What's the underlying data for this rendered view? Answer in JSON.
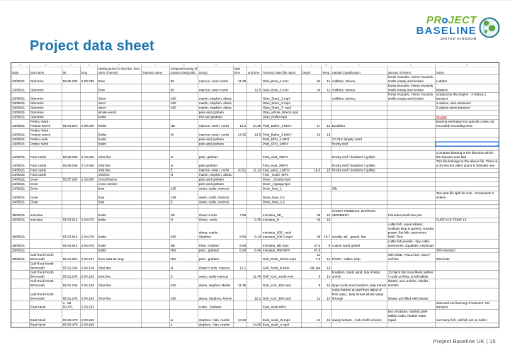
{
  "slide": {
    "title": "Project data sheet",
    "footer": "Project Baseline UK  |  15"
  },
  "logo": {
    "line1_pre": "PR",
    "line1_post": "JECT",
    "line2": "BASELINE",
    "line3": "UNITED KINGDOM"
  },
  "colors": {
    "title_blue": "#1d74ad",
    "logo_green": "#76b42e",
    "logo_blue": "#1e73be",
    "selection_blue": "#2e75d4",
    "red_note": "#c00000"
  },
  "sheet": {
    "col_letters": [
      "A",
      "B",
      "C",
      "D",
      "E",
      "F",
      "G",
      "H",
      "I",
      "J",
      "K",
      "L",
      "M",
      "N",
      "O",
      "P"
    ],
    "columns": [
      "Date",
      "Site name",
      "lat",
      "long",
      "starting point (i.r shot line, bow, stern of wreck)",
      "Transect name",
      "compass bearing of transect being laid",
      "Group",
      "start time",
      "end time",
      "Transect video file name",
      "Depth",
      "Temp",
      "Habitat Classification",
      "species of interst",
      "Notes"
    ],
    "right_aligned_columns": [
      8,
      9,
      11,
      12
    ],
    "selection": {
      "row_index": 10,
      "col_index": 15
    },
    "styled_cells": [
      {
        "row_index": 6,
        "col_index": 15,
        "class": "red"
      }
    ],
    "rows": [
      [
        "23/08/21",
        "Glanmire",
        "55 55.236",
        "2 08.239",
        "Bow",
        "",
        "90",
        "marcus, owen curtis",
        "11.38",
        "",
        "Glan_Bow_1.mov",
        "34",
        "11",
        "cobbles, stones,",
        "horse mussels. Horse mussels shells empty and broken",
        "Lobster"
      ],
      [
        "23/08/21",
        "Glanmire",
        "",
        "",
        "Bow",
        "",
        "60",
        "marcus, owen curtis",
        "",
        "12.5",
        "Glan_Bow_2.mov",
        "34",
        "11",
        "cobbles, stones,",
        "horse mussels. Horse mussels shells empty and broken.",
        "lobsters"
      ],
      [
        "23/08/21",
        "Glanmire",
        "",
        "",
        "Stern",
        "",
        "160",
        "martin, stephen, alana",
        "",
        "",
        "Glan_Stern_1.mp4",
        "",
        "",
        "cobbles, stones,",
        "horse mussels. Horse mussels shells empty and broken.",
        "octopus by the engine - 3 videos 1 transect"
      ],
      [
        "23/08/21",
        "Glanmire",
        "",
        "",
        "stern",
        "",
        "160",
        "martin, stephen, alana",
        "",
        "",
        "Glan_Stern_2.mp4",
        "",
        "",
        "",
        "",
        "3 videos, sam etransect"
      ],
      [
        "23/08/21",
        "Glanmire",
        "",
        "",
        "stern",
        "",
        "160",
        "martin, stephen, alana",
        "",
        "",
        "Glan_Stern_3. mp4",
        "",
        "",
        "",
        "",
        "3 videos same transect"
      ],
      [
        "23/08/21",
        "Glanmire",
        "",
        "",
        "whole wreck",
        "",
        "",
        "pete and graham",
        "",
        "",
        "Glan_whole_Wreck.mp4",
        "",
        "",
        "",
        "",
        ""
      ],
      [
        "23/08/21",
        "Glanmire",
        "",
        "",
        "boiler",
        "",
        "",
        "Pet and graham",
        "",
        "",
        "Glan_Boiler.mp4",
        "",
        "",
        "",
        "",
        "zig zag"
      ],
      [
        "23/08/21",
        "Pettico Wick - Peanut wreck",
        "55 54.923",
        "2 09.205",
        "Boiler",
        "",
        "NE",
        "marcus, owen, curtis",
        "14.2",
        "14.35",
        "Petti_Boiler_1.MOV",
        "17",
        "13",
        "Boulders",
        "",
        "bearing estimated not specific notes not recorded/ recording area"
      ],
      [
        "23/08/21",
        "Pettico Wick - Peanut wreck",
        "",
        "",
        "Boiler",
        "",
        "W",
        "marcus, owen, curtis",
        "14.35",
        "14.5",
        "Petti_Boiler_2.MOV",
        "10",
        "13",
        "",
        "",
        ""
      ],
      [
        "23/08/21",
        "Pettico wick",
        "",
        "",
        "boiler",
        "",
        "",
        "pete and graham",
        "",
        "",
        "Petti_DPV_1.MP4",
        "",
        "",
        "17-21m largely sand",
        "",
        ""
      ],
      [
        "23/08/21",
        "Pettico Wick",
        "",
        "",
        "boiler",
        "",
        "",
        "pete and graham",
        "",
        "",
        "Petti_DPV_2MP4",
        "",
        "",
        "Rocky reef",
        "",
        ""
      ],
      [
        "",
        "",
        "",
        "",
        "",
        "",
        "",
        "",
        "",
        "",
        "",
        "",
        "",
        "",
        "",
        ""
      ],
      [
        "24/08/21",
        "Fast castle",
        "55 56.036",
        "2 13.626",
        "Shot line",
        "",
        "w",
        "pete, graham",
        "",
        "",
        "Fast_east_1MP4",
        "",
        "",
        "Rocky reef / boulders / gullies",
        "",
        "Compass bearing is the direction which the transect was laid"
      ],
      [
        "24/08/21",
        "Fast castle",
        "55 56.036",
        "2 13.626",
        "shot line",
        "",
        "w",
        "pete graham",
        "",
        "",
        "Fast_east_2MP4",
        "",
        "",
        "Rocky reef / boulders / gullies",
        "",
        "This file belongs to the above file. There si a 30 second video and a 5 miniuete one"
      ],
      [
        "24/08/21",
        "Fast castle",
        "",
        "",
        "shot line",
        "",
        "E",
        "marcus, owen, curtis",
        "10.51",
        "11.13",
        "Fast_west_1.MOV",
        "18.4",
        "13",
        "Rocky reef / boulders / gullies",
        "",
        ""
      ],
      [
        "24/08/21",
        "Fast castle",
        "",
        "",
        "shotline",
        "",
        "N",
        "martin, stephen, alana,",
        "",
        "",
        "Fast _south .MP4",
        "",
        "",
        "",
        "",
        ""
      ],
      [
        "24/08/21",
        "Dove",
        "55 57.286",
        "2 16.805",
        "circumfrance",
        "",
        "",
        "pete and graham",
        "",
        "",
        "Dove _circular.mp4",
        "",
        "",
        "",
        "",
        ""
      ],
      [
        "24/08/21",
        "Dove",
        "",
        "",
        "cross section",
        "",
        "",
        "pete and graham",
        "",
        "",
        "Dove _zigzag.mp4",
        "",
        "",
        "",
        "",
        ""
      ],
      [
        "24/08/21",
        "Dove",
        "",
        "",
        "bow",
        "",
        "135",
        "owen, curtis, marcus",
        "",
        "",
        "Dove_bow_1",
        "",
        "",
        "Silt,",
        "",
        ""
      ],
      [
        "24/08/21",
        "Dove",
        "",
        "",
        "bow",
        "",
        "135",
        "owen, curtis, marcus",
        "",
        "",
        "Dove_bow_2-1",
        "",
        "",
        "",
        "",
        "Two part file split for size - 2 transects 3 videos"
      ],
      [
        "24/08/21",
        "Dove",
        "",
        "",
        "bow",
        "",
        "E",
        "owen, curtis, marcus",
        "",
        "",
        "Dove_bow_2-2",
        "",
        "",
        "",
        "",
        ""
      ],
      [
        "",
        "",
        "",
        "",
        "",
        "",
        "",
        "",
        "",
        "",
        "",
        "",
        "",
        "",
        "",
        ""
      ],
      [
        "25/08/21",
        "messina",
        "",
        "",
        "boiler",
        "",
        "SE",
        "Owen Curtis",
        "7.58",
        "",
        "messina_SE_",
        "49",
        "10",
        "SANDY PEBBLES, BARRON SEDIMENT",
        "Flounder,small sea pen",
        ""
      ],
      [
        "25/08/21",
        "messina",
        "55 53.614",
        "2 04.678",
        "boiler",
        "",
        "N",
        "Owen, curtis",
        "",
        "9.35",
        "messina_N",
        "49",
        "10",
        "",
        "",
        "SURFACE TEMP 13"
      ],
      [
        "25/08/21",
        "",
        "55 53.614",
        "2 04.678",
        "boiler",
        "",
        "205",
        "alana, martin , Stephen",
        "8.06",
        "9.13",
        "messina_205_.mp4\nmessina_205-2.mp4",
        "48",
        "10.7",
        "muddy, silt , gravel, few",
        "cuttle fish, squat lobster, scallops king & queen), sunstar, prawn, flat fish, anemones DMF, Red",
        ""
      ],
      [
        "25/08/21",
        "",
        "55 53.614",
        "2 04.678",
        "boiler",
        "",
        "NE",
        "Pete, Graham",
        "8.09",
        "",
        "messina_NE.mp4",
        "47.6",
        "9",
        "coarse sand gravel",
        "cuttle fish juvinile , tiny cuttle, anemones, squatties, nephrops",
        ""
      ],
      [
        "25/08/21",
        "",
        "",
        "",
        "boiler",
        "",
        "NW",
        "pete , graham",
        "8.29",
        "8.49",
        "messina_NW.MP4",
        "47.6",
        "",
        "",
        "",
        "30m transect"
      ],
      [
        "25/08/21",
        "Gull Rock North Brnmouth",
        "55 51.254",
        "2 04.127",
        "from start lat long",
        "",
        "NW",
        "pete , graham",
        "",
        "",
        "Gull_Rock_20min.mp4",
        "11\n7.9",
        "14",
        "ROCK, vallies, kelp",
        "WRASSE, POLLACK, KELP, urchins",
        "20minute"
      ],
      [
        "",
        "Gull Rock North Brnmouth",
        "55 51.246",
        "2 04.129",
        "Shot line",
        "",
        "N",
        "Owen Curtis, marcus",
        "11.1",
        "",
        "Gull_Rock_N.Mov",
        "08-Jan",
        "14",
        "",
        "",
        ""
      ],
      [
        "",
        "Gull Rock North Brnmouth",
        "55 51.246",
        "2 04.129",
        "shot line",
        "",
        "S",
        "owen, curtis marcus",
        "",
        "11.46",
        "Gull_rock_south.mov",
        "6",
        "14",
        "boulders, shely sand, lots of kelp, urchin",
        "15 black fish most likely saither / coaly urchins, small edible",
        ""
      ],
      [
        "",
        "Gull Rock North Brnmouth",
        "55 51.246",
        "2 04.129",
        "Shot line",
        "",
        "100",
        "alana, stephen Martin",
        "11.35",
        "",
        "Gull_rock_100.mp4",
        "9",
        "14",
        "large rocks and boulders, kelp forrest",
        "lobster, sea urchins, whelks , starfish",
        ""
      ],
      [
        "",
        "Gull Rock North Brnmouth",
        "55 51.246",
        "2 04.129",
        "Shot line",
        "",
        "180",
        "alana, Stephen, Martin",
        "",
        "12.1",
        "Gull_rock_180.mp4",
        "11",
        "14",
        "rocky bottom at start then tailed of finto sand , kelp forrest whole weay through",
        "lobster pot filled with lobster",
        ""
      ],
      [
        "",
        "East Neuk",
        "s - 55 50.471",
        "2 03.163",
        "",
        "",
        "",
        "curtis , Graham",
        "",
        "",
        "East_neuk.MP4",
        "",
        "",
        "",
        "",
        "start and end lat long of transect. NO transect"
      ],
      [
        "",
        "East Neuk",
        "55 50.479",
        "2 03.168",
        "",
        "",
        "w",
        "stephen. Alan, martin",
        "13.23",
        "",
        "East_neuk_W.mp4",
        "21",
        "13",
        "sandy bottom , rock shelfs vineers",
        "lots of lobster, starfish,DMF edible crabs, feather stars, squid",
        "not many fish, old fish net on boiler"
      ],
      [
        "",
        "East Neuk",
        "55 50.479",
        "2 03.168",
        "",
        "",
        "e",
        "stephen. Alan, martin",
        "",
        "14.06",
        "East_neuk_e.mp4",
        "",
        "",
        "",
        "",
        ""
      ]
    ]
  }
}
